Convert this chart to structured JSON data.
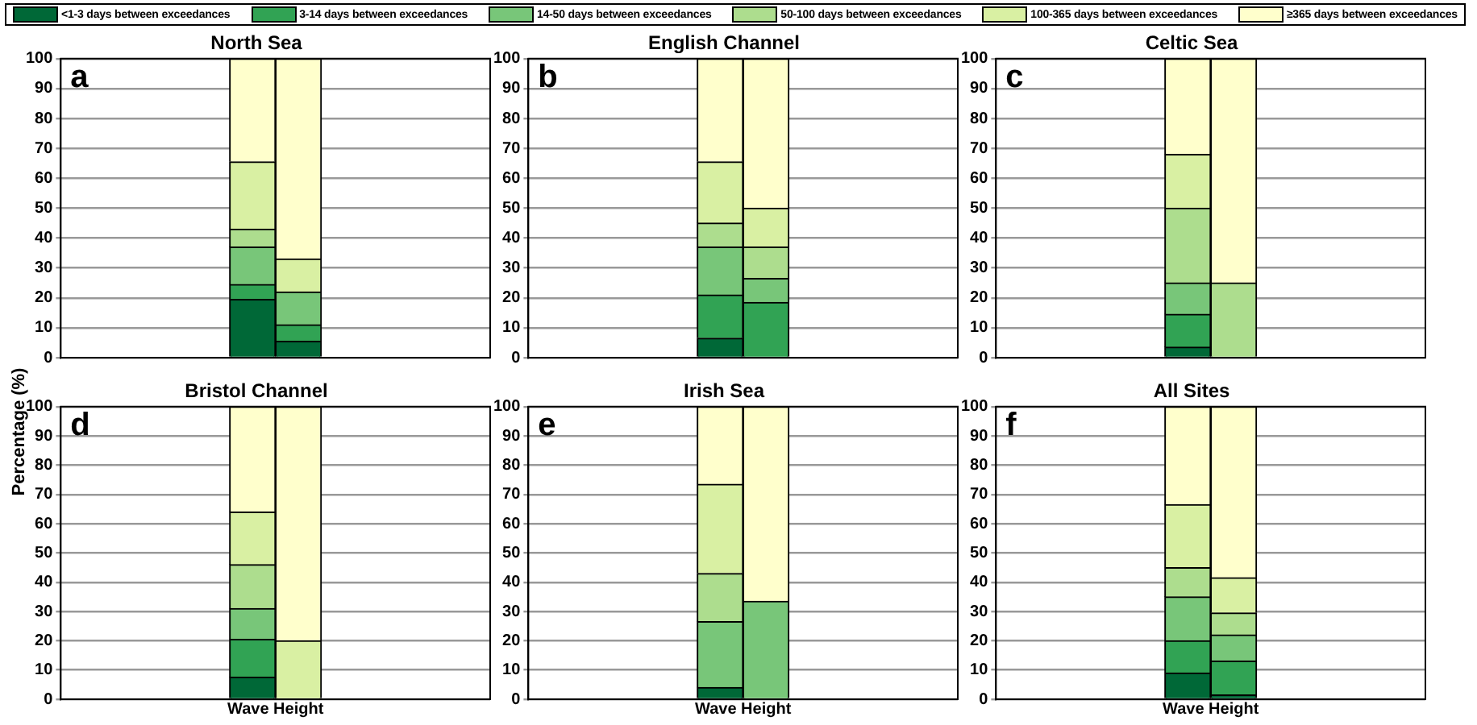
{
  "chart_data": [
    {
      "type": "bar",
      "title": "North Sea",
      "ylabel": "Percentage (%)",
      "annotations": [
        "a"
      ],
      "categories": [
        null,
        null
      ],
      "stacked": true,
      "ylim": [
        0,
        100
      ],
      "yticks": [
        0,
        10,
        20,
        30,
        40,
        50,
        60,
        70,
        80,
        90,
        100
      ],
      "grid": "y",
      "tick_labels": "y",
      "legend": "top",
      "series": [
        {
          "name": "<1-3 days between exceedances",
          "color": "#006837",
          "values": [
            19.5,
            5.5
          ]
        },
        {
          "name": "3-14 days between exceedances",
          "color": "#31a354",
          "values": [
            5,
            5.5
          ]
        },
        {
          "name": "14-50 days between exceedances",
          "color": "#78c679",
          "values": [
            12.5,
            11
          ]
        },
        {
          "name": "50-100 days between exceedances",
          "color": "#addd8e",
          "values": [
            6,
            0
          ]
        },
        {
          "name": "100-365 days between exceedances",
          "color": "#d9f0a3",
          "values": [
            22.5,
            11
          ]
        },
        {
          "name": "≥365 days between exceedances",
          "color": "#ffffcc",
          "values": [
            34.5,
            67
          ]
        }
      ]
    },
    {
      "type": "bar",
      "title": "English Channel",
      "annotations": [
        "b"
      ],
      "categories": [
        null,
        null
      ],
      "stacked": true,
      "ylim": [
        0,
        100
      ],
      "yticks": [
        0,
        10,
        20,
        30,
        40,
        50,
        60,
        70,
        80,
        90,
        100
      ],
      "grid": "y",
      "tick_labels": "y",
      "series": [
        {
          "color": "#006837",
          "values": [
            6.5,
            0
          ]
        },
        {
          "color": "#31a354",
          "values": [
            14.5,
            18.5
          ]
        },
        {
          "color": "#78c679",
          "values": [
            16,
            8
          ]
        },
        {
          "color": "#addd8e",
          "values": [
            8,
            10.5
          ]
        },
        {
          "color": "#d9f0a3",
          "values": [
            20.5,
            13
          ]
        },
        {
          "color": "#ffffcc",
          "values": [
            34.5,
            50
          ]
        }
      ]
    },
    {
      "type": "bar",
      "title": "Celtic Sea",
      "annotations": [
        "c"
      ],
      "categories": [
        null,
        null
      ],
      "stacked": true,
      "ylim": [
        0,
        100
      ],
      "yticks": [
        0,
        10,
        20,
        30,
        40,
        50,
        60,
        70,
        80,
        90,
        100
      ],
      "grid": "y",
      "tick_labels": "y",
      "series": [
        {
          "color": "#006837",
          "values": [
            3.5,
            0
          ]
        },
        {
          "color": "#31a354",
          "values": [
            11,
            0
          ]
        },
        {
          "color": "#78c679",
          "values": [
            10.5,
            0
          ]
        },
        {
          "color": "#addd8e",
          "values": [
            25,
            25
          ]
        },
        {
          "color": "#d9f0a3",
          "values": [
            18,
            0
          ]
        },
        {
          "color": "#ffffcc",
          "values": [
            32,
            75
          ]
        }
      ]
    },
    {
      "type": "bar",
      "title": "Bristol Channel",
      "xlabel": "Wave Height",
      "annotations": [
        "d"
      ],
      "categories": [
        null,
        null
      ],
      "stacked": true,
      "ylim": [
        0,
        100
      ],
      "yticks": [
        0,
        10,
        20,
        30,
        40,
        50,
        60,
        70,
        80,
        90,
        100
      ],
      "grid": "y",
      "tick_labels": "y",
      "series": [
        {
          "color": "#006837",
          "values": [
            7.5,
            0
          ]
        },
        {
          "color": "#31a354",
          "values": [
            13,
            0
          ]
        },
        {
          "color": "#78c679",
          "values": [
            10.5,
            0
          ]
        },
        {
          "color": "#addd8e",
          "values": [
            15,
            0
          ]
        },
        {
          "color": "#d9f0a3",
          "values": [
            18,
            20
          ]
        },
        {
          "color": "#ffffcc",
          "values": [
            36,
            80
          ]
        }
      ]
    },
    {
      "type": "bar",
      "title": "Irish Sea",
      "xlabel": "Wave Height",
      "annotations": [
        "e"
      ],
      "categories": [
        null,
        null
      ],
      "stacked": true,
      "ylim": [
        0,
        100
      ],
      "yticks": [
        0,
        10,
        20,
        30,
        40,
        50,
        60,
        70,
        80,
        90,
        100
      ],
      "grid": "y",
      "tick_labels": "y",
      "series": [
        {
          "color": "#006837",
          "values": [
            4,
            0
          ]
        },
        {
          "color": "#31a354",
          "values": [
            0,
            0
          ]
        },
        {
          "color": "#78c679",
          "values": [
            22.5,
            33.5
          ]
        },
        {
          "color": "#addd8e",
          "values": [
            16.5,
            0
          ]
        },
        {
          "color": "#d9f0a3",
          "values": [
            30.5,
            0
          ]
        },
        {
          "color": "#ffffcc",
          "values": [
            26.5,
            66.5
          ]
        }
      ]
    },
    {
      "type": "bar",
      "title": "All Sites",
      "xlabel": "Wave Height",
      "annotations": [
        "f"
      ],
      "categories": [
        null,
        null
      ],
      "stacked": true,
      "ylim": [
        0,
        100
      ],
      "yticks": [
        0,
        10,
        20,
        30,
        40,
        50,
        60,
        70,
        80,
        90,
        100
      ],
      "grid": "y",
      "tick_labels": "y",
      "series": [
        {
          "color": "#006837",
          "values": [
            9,
            1.5
          ]
        },
        {
          "color": "#31a354",
          "values": [
            11,
            11.5
          ]
        },
        {
          "color": "#78c679",
          "values": [
            15,
            9
          ]
        },
        {
          "color": "#addd8e",
          "values": [
            10,
            7.5
          ]
        },
        {
          "color": "#d9f0a3",
          "values": [
            21.5,
            12
          ]
        },
        {
          "color": "#ffffcc",
          "values": [
            33.5,
            58.5
          ]
        }
      ]
    }
  ]
}
